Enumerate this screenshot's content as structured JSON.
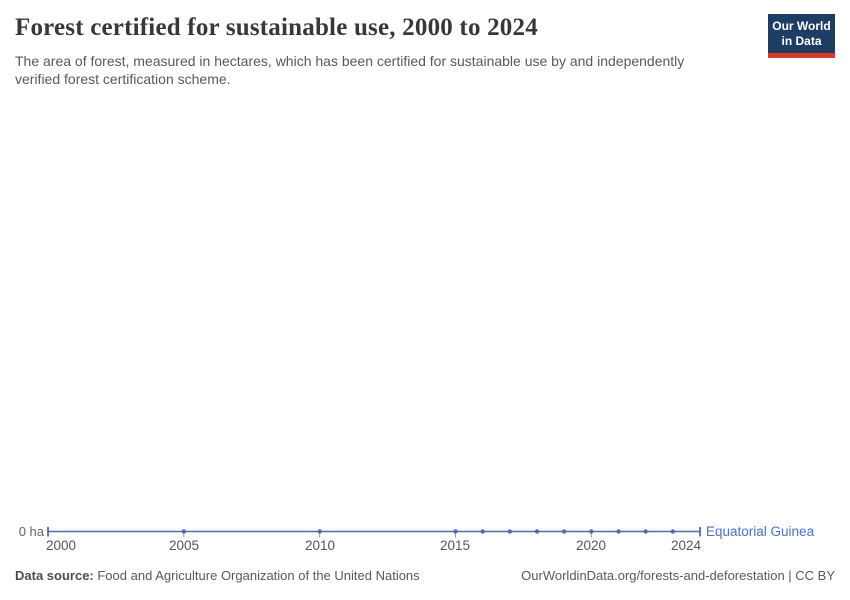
{
  "header": {
    "title": "Forest certified for sustainable use, 2000 to 2024",
    "subtitle": "The area of forest, measured in hectares, which has been certified for sustainable use by and independently verified forest certification scheme.",
    "logo": {
      "line1": "Our World",
      "line2": "in Data"
    }
  },
  "chart_data": {
    "type": "line",
    "title": "Forest certified for sustainable use, 2000 to 2024",
    "unit": "ha",
    "series": [
      {
        "name": "Equatorial Guinea",
        "x": [
          2000,
          2005,
          2010,
          2015,
          2016,
          2017,
          2018,
          2019,
          2020,
          2021,
          2022,
          2023,
          2024
        ],
        "values": [
          0,
          0,
          0,
          0,
          0,
          0,
          0,
          0,
          0,
          0,
          0,
          0,
          0
        ],
        "color": "#4a6bb5"
      }
    ],
    "xlim": [
      2000,
      2024
    ],
    "ylim": [
      0,
      0
    ],
    "x_ticks": [
      "2000",
      "2005",
      "2010",
      "2015",
      "2020",
      "2024"
    ],
    "x_tick_years": [
      2000,
      2005,
      2010,
      2015,
      2020,
      2024
    ],
    "y_ticks": [
      "0 ha"
    ],
    "grid": false,
    "legend_position": "end-of-line"
  },
  "axis": {
    "y_zero_label": "0 ha"
  },
  "entity_label": "Equatorial Guinea",
  "footer": {
    "source_label": "Data source:",
    "source_text": " Food and Agriculture Organization of the United Nations",
    "url_text": "OurWorldinData.org/forests-and-deforestation | CC BY"
  },
  "colors": {
    "line": "#4a6bb5",
    "entity": "#4a72c2",
    "logo_navy": "#1d3d63",
    "logo_red": "#d93a2e",
    "axis_tick": "#9a9a9a"
  }
}
